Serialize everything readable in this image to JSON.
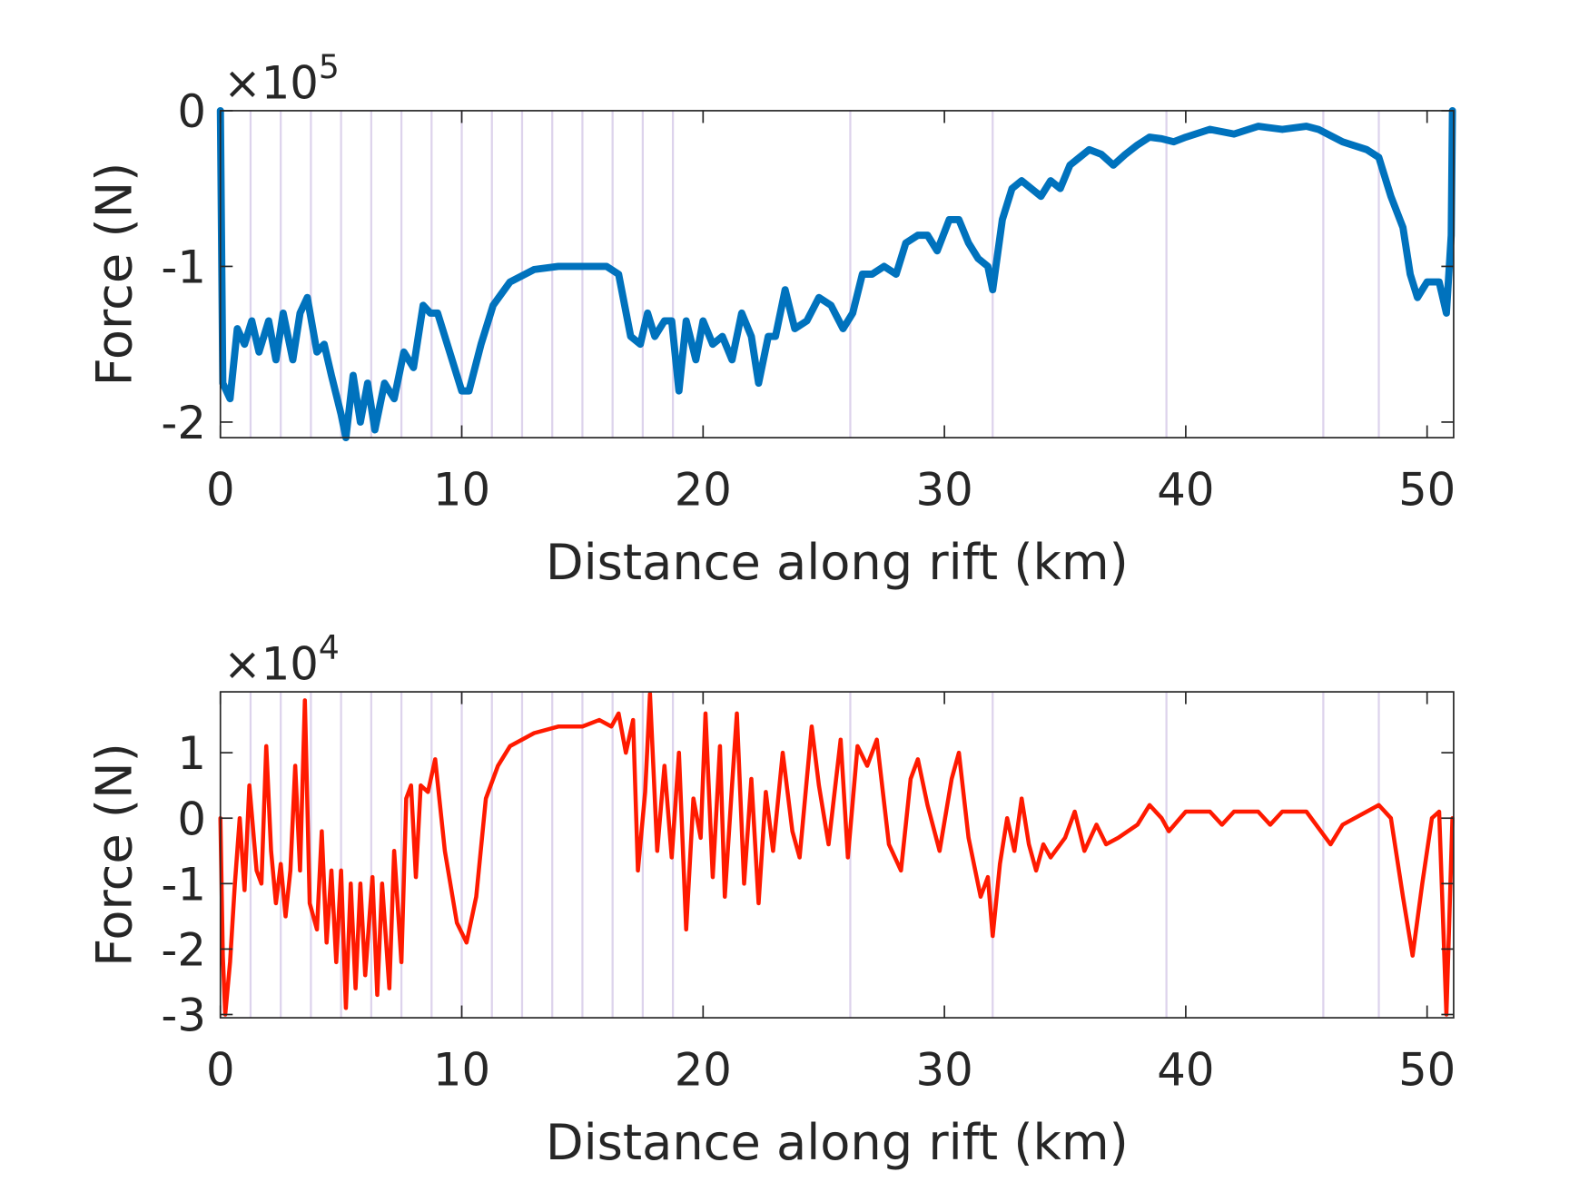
{
  "chart_data": [
    {
      "type": "line",
      "xlabel": "Distance along rift (km)",
      "ylabel": "Force (N)",
      "y_multiplier": {
        "base": "×10",
        "exponent": "5"
      },
      "xlim": [
        0,
        51.1
      ],
      "xticks": [
        0,
        10,
        20,
        30,
        40,
        50
      ],
      "ylim": [
        -2.1,
        0
      ],
      "yticks": [
        0,
        -1,
        -2
      ],
      "vlines": [
        1.25,
        2.5,
        3.75,
        5,
        6.25,
        7.5,
        8.75,
        10,
        11.25,
        12.5,
        13.75,
        15,
        16.25,
        17.5,
        18.75,
        26.1,
        32,
        39.2,
        45.7,
        48
      ],
      "vline_color": "#ddd3ec",
      "x": [
        0,
        0.1,
        0.4,
        0.7,
        1.0,
        1.3,
        1.6,
        2.0,
        2.3,
        2.6,
        3.0,
        3.3,
        3.6,
        4.0,
        4.3,
        4.6,
        5.0,
        5.2,
        5.5,
        5.8,
        6.1,
        6.4,
        6.8,
        7.2,
        7.6,
        8.0,
        8.4,
        8.7,
        9.0,
        9.5,
        10.0,
        10.3,
        10.8,
        11.3,
        12.0,
        13.0,
        14.0,
        15.0,
        16.0,
        16.5,
        17.0,
        17.4,
        17.7,
        18.0,
        18.4,
        18.7,
        19.0,
        19.3,
        19.7,
        20.0,
        20.4,
        20.8,
        21.2,
        21.6,
        22.0,
        22.3,
        22.7,
        23.0,
        23.4,
        23.8,
        24.3,
        24.8,
        25.3,
        25.8,
        26.2,
        26.6,
        27.0,
        27.5,
        28.0,
        28.4,
        28.9,
        29.3,
        29.7,
        30.2,
        30.6,
        31.0,
        31.4,
        31.8,
        32.0,
        32.4,
        32.8,
        33.2,
        33.6,
        34.0,
        34.4,
        34.8,
        35.2,
        35.6,
        36.0,
        36.5,
        37.0,
        37.5,
        38.0,
        38.5,
        39.0,
        39.5,
        40.0,
        41.0,
        42.0,
        43.0,
        44.0,
        45.0,
        45.5,
        46.5,
        47.5,
        48.0,
        48.5,
        49.0,
        49.3,
        49.6,
        50.0,
        50.5,
        50.8,
        51.0,
        51.05
      ],
      "series": [
        {
          "color": "#0072bd",
          "values": [
            0,
            -1.75,
            -1.85,
            -1.4,
            -1.5,
            -1.35,
            -1.55,
            -1.35,
            -1.6,
            -1.3,
            -1.6,
            -1.3,
            -1.2,
            -1.55,
            -1.5,
            -1.7,
            -1.95,
            -2.1,
            -1.7,
            -2.0,
            -1.75,
            -2.05,
            -1.75,
            -1.85,
            -1.55,
            -1.65,
            -1.25,
            -1.3,
            -1.3,
            -1.55,
            -1.8,
            -1.8,
            -1.5,
            -1.25,
            -1.1,
            -1.02,
            -1.0,
            -1.0,
            -1.0,
            -1.05,
            -1.45,
            -1.5,
            -1.3,
            -1.45,
            -1.35,
            -1.35,
            -1.8,
            -1.35,
            -1.6,
            -1.35,
            -1.5,
            -1.45,
            -1.6,
            -1.3,
            -1.45,
            -1.75,
            -1.45,
            -1.45,
            -1.15,
            -1.4,
            -1.35,
            -1.2,
            -1.25,
            -1.4,
            -1.3,
            -1.05,
            -1.05,
            -1.0,
            -1.05,
            -0.85,
            -0.8,
            -0.8,
            -0.9,
            -0.7,
            -0.7,
            -0.85,
            -0.95,
            -1.0,
            -1.15,
            -0.7,
            -0.5,
            -0.45,
            -0.5,
            -0.55,
            -0.45,
            -0.5,
            -0.35,
            -0.3,
            -0.25,
            -0.28,
            -0.35,
            -0.28,
            -0.22,
            -0.17,
            -0.18,
            -0.2,
            -0.17,
            -0.12,
            -0.15,
            -0.1,
            -0.12,
            -0.1,
            -0.12,
            -0.2,
            -0.25,
            -0.3,
            -0.55,
            -0.75,
            -1.05,
            -1.2,
            -1.1,
            -1.1,
            -1.3,
            -0.8,
            0
          ]
        }
      ]
    },
    {
      "type": "line",
      "xlabel": "Distance along rift (km)",
      "ylabel": "Force (N)",
      "y_multiplier": {
        "base": "×10",
        "exponent": "4"
      },
      "xlim": [
        0,
        51.1
      ],
      "xticks": [
        0,
        10,
        20,
        30,
        40,
        50
      ],
      "ylim": [
        -3.05,
        1.93
      ],
      "yticks": [
        1,
        0,
        -1,
        -2,
        -3
      ],
      "vlines": [
        1.25,
        2.5,
        3.75,
        5,
        6.25,
        7.5,
        8.75,
        10,
        11.25,
        12.5,
        13.75,
        15,
        16.25,
        17.5,
        18.75,
        26.1,
        32,
        39.2,
        45.7,
        48
      ],
      "vline_color": "#ddd3ec",
      "x": [
        0,
        0.1,
        0.2,
        0.4,
        0.6,
        0.8,
        1.0,
        1.2,
        1.5,
        1.7,
        1.9,
        2.1,
        2.3,
        2.5,
        2.7,
        2.9,
        3.1,
        3.3,
        3.5,
        3.7,
        4.0,
        4.2,
        4.4,
        4.6,
        4.8,
        5.0,
        5.2,
        5.4,
        5.6,
        5.8,
        6.0,
        6.3,
        6.5,
        6.7,
        7.0,
        7.2,
        7.5,
        7.7,
        7.9,
        8.1,
        8.3,
        8.6,
        8.9,
        9.3,
        9.8,
        10.2,
        10.6,
        11.0,
        11.5,
        12.0,
        13.0,
        14.0,
        15.0,
        15.7,
        16.2,
        16.5,
        16.8,
        17.1,
        17.3,
        17.6,
        17.8,
        18.1,
        18.4,
        18.7,
        19.0,
        19.3,
        19.6,
        19.9,
        20.1,
        20.4,
        20.7,
        20.9,
        21.2,
        21.4,
        21.7,
        22.0,
        22.3,
        22.6,
        22.9,
        23.3,
        23.7,
        24.0,
        24.5,
        24.8,
        25.2,
        25.7,
        26.0,
        26.4,
        26.8,
        27.2,
        27.7,
        28.2,
        28.6,
        28.9,
        29.3,
        29.8,
        30.3,
        30.6,
        31.0,
        31.5,
        31.8,
        32.0,
        32.3,
        32.6,
        32.9,
        33.2,
        33.5,
        33.8,
        34.1,
        34.4,
        35.0,
        35.4,
        35.8,
        36.3,
        36.7,
        37.2,
        38.0,
        38.5,
        39.0,
        39.3,
        40.0,
        40.5,
        41.0,
        41.5,
        42.0,
        43.0,
        43.5,
        44.0,
        45.0,
        46.0,
        46.5,
        47.5,
        48.0,
        48.5,
        49.0,
        49.4,
        49.8,
        50.2,
        50.5,
        50.8,
        51.05
      ],
      "series": [
        {
          "color": "#ff1a00",
          "values": [
            0,
            -2.1,
            -3.0,
            -2.2,
            -1.0,
            0,
            -1.1,
            0.5,
            -0.8,
            -1.0,
            1.1,
            -0.5,
            -1.3,
            -0.7,
            -1.5,
            -0.8,
            0.8,
            -0.8,
            1.8,
            -1.3,
            -1.7,
            -0.2,
            -1.9,
            -0.8,
            -2.2,
            -0.8,
            -2.9,
            -1.0,
            -2.6,
            -1.0,
            -2.4,
            -0.9,
            -2.7,
            -1.0,
            -2.6,
            -0.5,
            -2.2,
            0.3,
            0.5,
            -0.9,
            0.5,
            0.4,
            0.9,
            -0.5,
            -1.6,
            -1.9,
            -1.2,
            0.3,
            0.8,
            1.1,
            1.3,
            1.4,
            1.4,
            1.5,
            1.4,
            1.6,
            1.0,
            1.5,
            -0.8,
            0.4,
            1.9,
            -0.5,
            0.8,
            -0.6,
            1.0,
            -1.7,
            0.3,
            -0.3,
            1.6,
            -0.9,
            1.1,
            -1.2,
            0.5,
            1.6,
            -1.0,
            0.6,
            -1.3,
            0.4,
            -0.5,
            1.0,
            -0.2,
            -0.6,
            1.4,
            0.5,
            -0.4,
            1.2,
            -0.6,
            1.1,
            0.8,
            1.2,
            -0.4,
            -0.8,
            0.6,
            0.9,
            0.2,
            -0.5,
            0.6,
            1.0,
            -0.3,
            -1.2,
            -0.9,
            -1.8,
            -0.7,
            0.0,
            -0.5,
            0.3,
            -0.4,
            -0.8,
            -0.4,
            -0.6,
            -0.3,
            0.1,
            -0.5,
            -0.1,
            -0.4,
            -0.3,
            -0.1,
            0.2,
            0.0,
            -0.2,
            0.1,
            0.1,
            0.1,
            -0.1,
            0.1,
            0.1,
            -0.1,
            0.1,
            0.1,
            -0.4,
            -0.1,
            0.1,
            0.2,
            0.0,
            -1.2,
            -2.1,
            -1.0,
            0.0,
            0.1,
            -3.0,
            0
          ]
        }
      ]
    }
  ]
}
